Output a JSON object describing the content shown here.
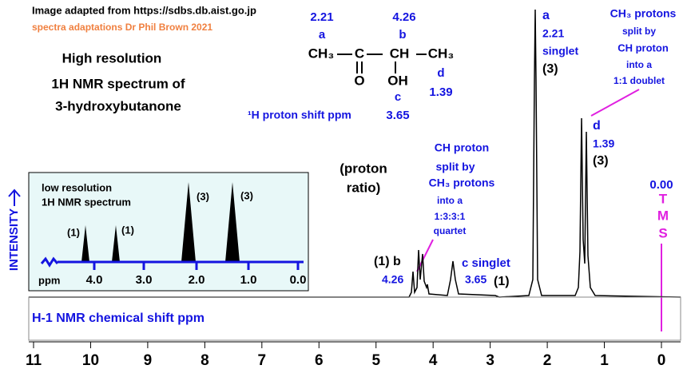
{
  "header": {
    "source": "Image adapted from https://sdbs.db.aist.go.jp",
    "credit": "spectra adaptations Dr Phil Brown 2021"
  },
  "title": [
    "High resolution",
    "1H NMR spectrum of",
    "3-hydroxybutanone"
  ],
  "molecule": {
    "shift_a": "2.21",
    "label_a": "a",
    "shift_b": "4.26",
    "label_b": "b",
    "ch3_left": "CH₃",
    "carbonyl_c": "C",
    "ch": "CH",
    "ch3_right": "CH₃",
    "oxygen": "O",
    "hydroxyl": "OH",
    "label_c": "c",
    "shift_c": "3.65",
    "label_d": "d",
    "shift_d": "1.39",
    "caption": "¹H proton shift  ppm"
  },
  "ratio_note": [
    "(proton",
    "ratio)"
  ],
  "quartet_note": [
    "CH proton",
    "split by",
    "CH₃ protons",
    "into a",
    "1:3:3:1",
    "quartet"
  ],
  "peak_b": [
    "(1) b",
    "4.26"
  ],
  "peak_c": [
    "c singlet",
    "3.65",
    "(1)"
  ],
  "peak_a": [
    "a",
    "2.21",
    "singlet",
    "(3)"
  ],
  "peak_d": [
    "d",
    "1.39",
    "(3)"
  ],
  "doublet_note": [
    "CH₃ protons",
    "split by",
    "CH proton",
    "into a",
    "1:1 doublet"
  ],
  "tms": [
    "0.00",
    "T",
    "M",
    "S"
  ],
  "inset": {
    "title": [
      "low resolution",
      "1H NMR spectrum"
    ],
    "ratios": [
      "(1)",
      "(1)",
      "(3)",
      "(3)"
    ],
    "unit": "ppm",
    "ticks": [
      "4.0",
      "3.0",
      "2.0",
      "1.0",
      "0.0"
    ]
  },
  "y_axis": "INTENSITY",
  "x_axis": {
    "label": "H-1 NMR chemical shift  ppm",
    "ticks": [
      "11",
      "10",
      "9",
      "8",
      "7",
      "6",
      "5",
      "4",
      "3",
      "2",
      "1",
      "0"
    ]
  }
}
